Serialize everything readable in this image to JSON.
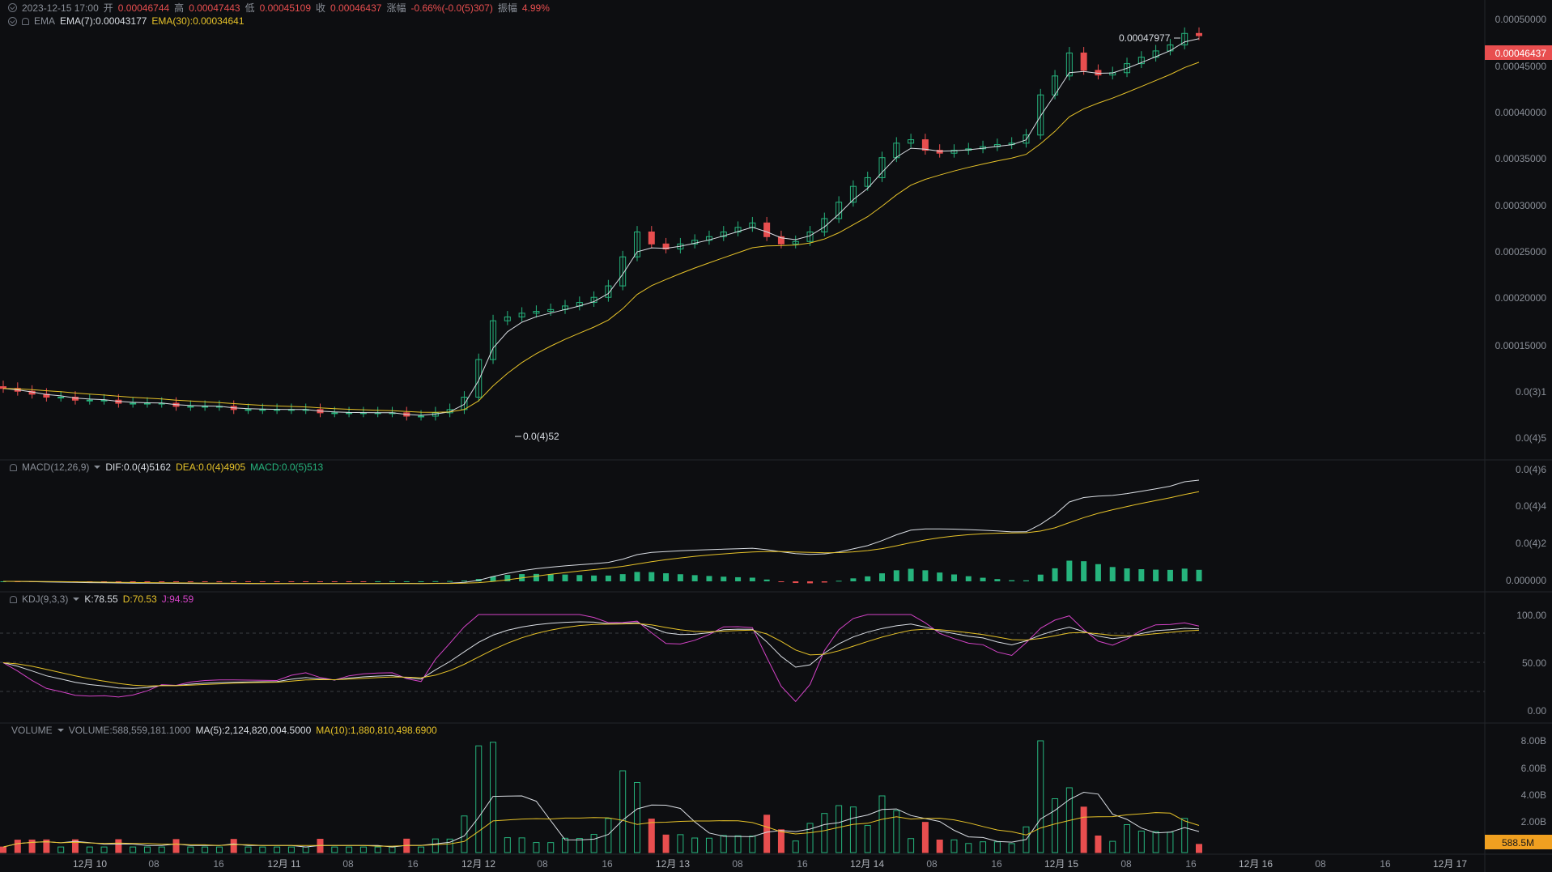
{
  "header": {
    "datetime": "2023-12-15 17:00",
    "open_label": "开",
    "open": "0.00046744",
    "high_label": "高",
    "high": "0.00047443",
    "low_label": "低",
    "low": "0.00045109",
    "close_label": "收",
    "close": "0.00046437",
    "change_label": "涨幅",
    "change": "-0.66%(-0.0(5)307)",
    "amplitude_label": "振幅",
    "amplitude": "4.99%"
  },
  "ema": {
    "label": "EMA",
    "ema7": "EMA(7):0.00043177",
    "ema30": "EMA(30):0.00034641"
  },
  "macd": {
    "label": "MACD(12,26,9)",
    "dif": "DIF:0.0(4)5162",
    "dea": "DEA:0.0(4)4905",
    "macd": "MACD:0.0(5)513"
  },
  "kdj": {
    "label": "KDJ(9,3,3)",
    "k": "K:78.55",
    "d": "D:70.53",
    "j": "J:94.59"
  },
  "volume": {
    "label": "VOLUME",
    "vol": "VOLUME:588,559,181.1000",
    "ma5": "MA(5):2,124,820,004.5000",
    "ma10": "MA(10):1,880,810,498.6900"
  },
  "price_axis": [
    "0.00050000",
    "0.00045000",
    "0.00040000",
    "0.00035000",
    "0.00030000",
    "0.00025000",
    "0.00020000",
    "0.00015000",
    "0.0(3)1",
    "0.0(4)5"
  ],
  "current_price_tag": "0.00046437",
  "high_marker": "0.00047977",
  "low_marker": "0.0(4)52",
  "macd_axis": [
    "0.0(4)6",
    "0.0(4)4",
    "0.0(4)2",
    "0.000000"
  ],
  "kdj_axis": [
    "100.00",
    "50.00",
    "0.00"
  ],
  "volume_axis": [
    "8.00B",
    "6.00B",
    "4.00B",
    "2.00B"
  ],
  "current_volume_tag": "588.5M",
  "time_axis": [
    "12月 10",
    "08",
    "16",
    "12月 11",
    "08",
    "16",
    "12月 12",
    "08",
    "16",
    "12月 13",
    "08",
    "16",
    "12月 14",
    "08",
    "16",
    "12月 15",
    "08",
    "16",
    "12月 16",
    "08",
    "16",
    "12月 17"
  ],
  "colors": {
    "up": "#26b47d",
    "down": "#e84e4f",
    "ema7": "#d9dde3",
    "ema30": "#e6c229",
    "j_line": "#d443c7",
    "volume_tag": "#f0a020"
  },
  "chart_data": {
    "type": "candlestick",
    "price_scale": "log",
    "candles_close_approx": [
      6.1e-05,
      6e-05,
      5.9e-05,
      5.8e-05,
      5.8e-05,
      5.7e-05,
      5.7e-05,
      5.7e-05,
      5.6e-05,
      5.6e-05,
      5.6e-05,
      5.6e-05,
      5.5e-05,
      5.5e-05,
      5.5e-05,
      5.5e-05,
      5.4e-05,
      5.4e-05,
      5.4e-05,
      5.4e-05,
      5.4e-05,
      5.4e-05,
      5.3e-05,
      5.3e-05,
      5.3e-05,
      5.3e-05,
      5.3e-05,
      5.3e-05,
      5.2e-05,
      5.2e-05,
      5.3e-05,
      5.4e-05,
      5.8e-05,
      7.2e-05,
      9e-05,
      9.2e-05,
      9.4e-05,
      9.5e-05,
      9.6e-05,
      9.8e-05,
      0.0001,
      0.000103,
      0.00011,
      0.00013,
      0.00015,
      0.00014,
      0.000136,
      0.00014,
      0.000143,
      0.000146,
      0.00015,
      0.000154,
      0.000158,
      0.000146,
      0.00014,
      0.000142,
      0.00015,
      0.000162,
      0.000178,
      0.000195,
      0.000205,
      0.00023,
      0.00025,
      0.000255,
      0.00024,
      0.000236,
      0.00024,
      0.000242,
      0.000245,
      0.000248,
      0.00025,
      0.000262,
      0.00033,
      0.000368,
      0.00042,
      0.00038,
      0.00037,
      0.000375,
      0.000395,
      0.00041,
      0.000425,
      0.00044,
      0.00047,
      0.000464
    ],
    "volume_max": "8.00B",
    "last_volume": "588.5M"
  }
}
